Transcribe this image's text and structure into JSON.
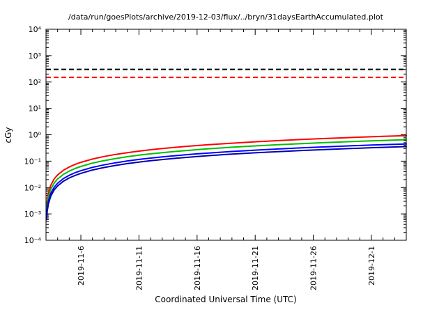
{
  "title": "/data/run/goesPlots/archive/2019-12-03/flux/../bryn/31daysEarthAccumulated.plot",
  "chart_data": {
    "type": "line",
    "title": "/data/run/goesPlots/archive/2019-12-03/flux/../bryn/31daysEarthAccumulated.plot",
    "xlabel": "Coordinated Universal Time (UTC)",
    "ylabel": "cGy",
    "y_scale": "log",
    "ylim": [
      0.0001,
      10000
    ],
    "ylim_exponents": [
      -4,
      4
    ],
    "y_tick_labels": [
      "10⁻⁴",
      "10⁻³",
      "10⁻²",
      "10⁻¹",
      "10⁰",
      "10¹",
      "10²",
      "10³",
      "10⁴"
    ],
    "x_range_days": [
      0,
      31
    ],
    "x_minor_tick_interval_days": 1,
    "grid": false,
    "legend": "none",
    "x_ticks": [
      {
        "day": 3,
        "label": "2019-11-6"
      },
      {
        "day": 8,
        "label": "2019-11-11"
      },
      {
        "day": 13,
        "label": "2019-11-16"
      },
      {
        "day": 18,
        "label": "2019-11-21"
      },
      {
        "day": 23,
        "label": "2019-11-26"
      },
      {
        "day": 28,
        "label": "2019-12-1"
      }
    ],
    "x": [
      0.05,
      0.1,
      0.2,
      0.4,
      0.7,
      1,
      1.5,
      2,
      2.5,
      3,
      4,
      5,
      6,
      7,
      8,
      9,
      10,
      11,
      12,
      13,
      14,
      16,
      18,
      20,
      22,
      24,
      26,
      28,
      29,
      30,
      31
    ],
    "series": [
      {
        "name": "red",
        "color": "#ff0000",
        "values": [
          0.0015,
          0.003,
          0.006,
          0.012,
          0.021,
          0.03,
          0.045,
          0.06,
          0.075,
          0.09,
          0.12,
          0.15,
          0.18,
          0.21,
          0.24,
          0.27,
          0.3,
          0.33,
          0.36,
          0.39,
          0.42,
          0.48,
          0.54,
          0.6,
          0.66,
          0.72,
          0.78,
          0.84,
          0.87,
          0.9,
          0.93
        ]
      },
      {
        "name": "green",
        "color": "#00c000",
        "values": [
          0.0011,
          0.0021,
          0.0042,
          0.0084,
          0.0147,
          0.021,
          0.0315,
          0.042,
          0.0525,
          0.063,
          0.084,
          0.105,
          0.126,
          0.147,
          0.168,
          0.189,
          0.21,
          0.231,
          0.252,
          0.273,
          0.294,
          0.336,
          0.378,
          0.42,
          0.462,
          0.504,
          0.546,
          0.588,
          0.609,
          0.63,
          0.651
        ]
      },
      {
        "name": "blue",
        "color": "#0000ff",
        "values": [
          0.0007,
          0.0015,
          0.0029,
          0.0058,
          0.0102,
          0.0145,
          0.0218,
          0.029,
          0.0363,
          0.0435,
          0.058,
          0.0725,
          0.087,
          0.1015,
          0.116,
          0.1305,
          0.145,
          0.1595,
          0.174,
          0.1885,
          0.203,
          0.232,
          0.261,
          0.29,
          0.319,
          0.348,
          0.377,
          0.406,
          0.4205,
          0.435,
          0.4495
        ]
      },
      {
        "name": "navy",
        "color": "#0000b0",
        "values": [
          0.0006,
          0.0012,
          0.0023,
          0.0046,
          0.0081,
          0.0115,
          0.0173,
          0.023,
          0.0288,
          0.0345,
          0.046,
          0.0575,
          0.069,
          0.0805,
          0.092,
          0.1035,
          0.115,
          0.1265,
          0.138,
          0.1495,
          0.161,
          0.184,
          0.207,
          0.23,
          0.253,
          0.276,
          0.299,
          0.322,
          0.3335,
          0.345,
          0.3565
        ]
      }
    ],
    "threshold_lines": [
      {
        "name": "black-limit",
        "value": 300,
        "color": "#000000",
        "style": "dashed"
      },
      {
        "name": "red-limit",
        "value": 150,
        "color": "#ff0000",
        "style": "dashed"
      }
    ]
  }
}
